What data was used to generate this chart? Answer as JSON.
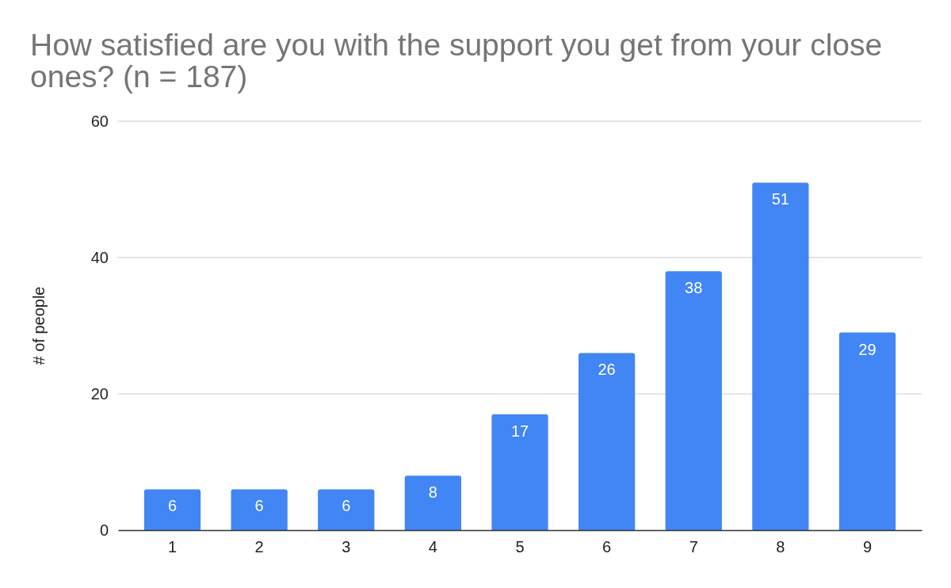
{
  "chart_data": {
    "type": "bar",
    "title": "How satisfied are you with the support you get from your close ones? (n = 187)",
    "ylabel": "# of people",
    "categories": [
      "1",
      "2",
      "3",
      "4",
      "5",
      "6",
      "7",
      "8",
      "9"
    ],
    "values": [
      6,
      6,
      6,
      8,
      17,
      26,
      38,
      51,
      29
    ],
    "color": "#4285f4",
    "ylim": [
      0,
      60
    ],
    "yticks": [
      0,
      20,
      40,
      60
    ],
    "grid": "y",
    "data_labels": true,
    "legend": false
  }
}
